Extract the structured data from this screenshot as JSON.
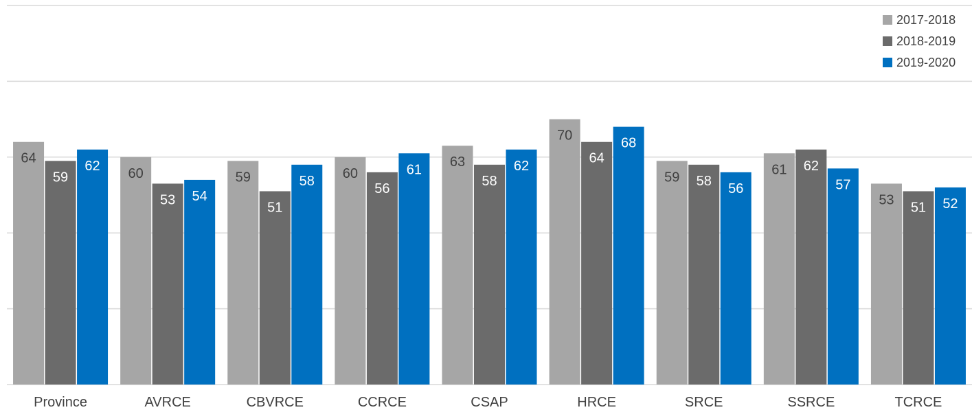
{
  "chart_data": {
    "type": "bar",
    "categories": [
      "Province",
      "AVRCE",
      "CBVRCE",
      "CCRCE",
      "CSAP",
      "HRCE",
      "SRCE",
      "SSRCE",
      "TCRCE"
    ],
    "series": [
      {
        "name": "2017-2018",
        "color": "#a6a6a6",
        "label_color": "#404040",
        "values": [
          64,
          60,
          59,
          60,
          63,
          70,
          59,
          61,
          53
        ]
      },
      {
        "name": "2018-2019",
        "color": "#6b6b6b",
        "label_color": "#ffffff",
        "values": [
          59,
          53,
          51,
          56,
          58,
          64,
          58,
          62,
          51
        ]
      },
      {
        "name": "2019-2020",
        "color": "#0070c0",
        "label_color": "#ffffff",
        "values": [
          62,
          54,
          58,
          61,
          62,
          68,
          56,
          57,
          52
        ]
      }
    ],
    "ylim": [
      0,
      100
    ],
    "grid": true,
    "legend_position": "top-right",
    "show_data_labels": true
  }
}
